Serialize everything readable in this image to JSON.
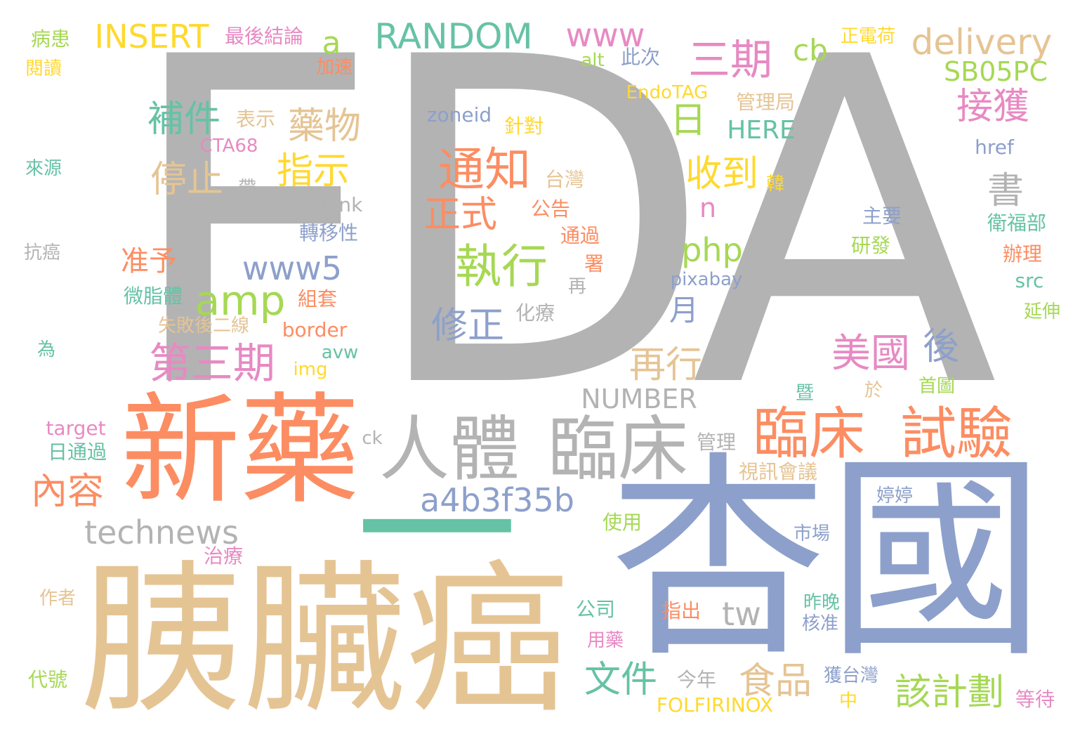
{
  "palette": {
    "gray": "#b3b3b3",
    "salmon": "#fc8d62",
    "periwinkle": "#8da0cb",
    "pink": "#e78ac3",
    "green": "#a6d854",
    "yellow": "#ffd92f",
    "tan": "#e5c494",
    "teal": "#66c2a5"
  },
  "words": [
    {
      "text": "FDA",
      "color": "gray"
    },
    {
      "text": "胰臟癌",
      "color": "tan"
    },
    {
      "text": "杏國",
      "color": "periwinkle"
    },
    {
      "text": "新藥",
      "color": "salmon"
    },
    {
      "text": "一",
      "color": "teal"
    },
    {
      "text": "人體",
      "color": "gray"
    },
    {
      "text": "臨床",
      "color": "gray"
    },
    {
      "text": "臨床",
      "color": "salmon"
    },
    {
      "text": "試驗",
      "color": "salmon"
    },
    {
      "text": "通知",
      "color": "salmon"
    },
    {
      "text": "執行",
      "color": "green"
    },
    {
      "text": "三期",
      "color": "pink"
    },
    {
      "text": "第三期",
      "color": "pink"
    },
    {
      "text": "RANDOM",
      "color": "teal"
    },
    {
      "text": "INSERT",
      "color": "yellow"
    },
    {
      "text": "delivery",
      "color": "tan"
    },
    {
      "text": "www",
      "color": "pink"
    },
    {
      "text": "technews",
      "color": "gray"
    },
    {
      "text": "a4b3f35b",
      "color": "periwinkle"
    },
    {
      "text": "amp",
      "color": "green"
    },
    {
      "text": "www5",
      "color": "periwinkle"
    },
    {
      "text": "NUMBER",
      "color": "gray"
    },
    {
      "text": "SB05PC",
      "color": "green"
    },
    {
      "text": "php",
      "color": "green"
    },
    {
      "text": "cb",
      "color": "green"
    },
    {
      "text": "a",
      "color": "green"
    },
    {
      "text": "HERE",
      "color": "teal"
    },
    {
      "text": "tw",
      "color": "gray"
    },
    {
      "text": "n",
      "color": "pink"
    },
    {
      "text": "補件",
      "color": "teal"
    },
    {
      "text": "藥物",
      "color": "tan"
    },
    {
      "text": "停止",
      "color": "tan"
    },
    {
      "text": "指示",
      "color": "yellow"
    },
    {
      "text": "正式",
      "color": "salmon"
    },
    {
      "text": "修正",
      "color": "periwinkle"
    },
    {
      "text": "收到",
      "color": "yellow"
    },
    {
      "text": "日",
      "color": "green"
    },
    {
      "text": "接獲",
      "color": "pink"
    },
    {
      "text": "書",
      "color": "gray"
    },
    {
      "text": "美國",
      "color": "pink"
    },
    {
      "text": "後",
      "color": "periwinkle"
    },
    {
      "text": "再行",
      "color": "tan"
    },
    {
      "text": "內容",
      "color": "salmon"
    },
    {
      "text": "准予",
      "color": "salmon"
    },
    {
      "text": "文件",
      "color": "teal"
    },
    {
      "text": "食品",
      "color": "tan"
    },
    {
      "text": "該計劃",
      "color": "green"
    },
    {
      "text": "月",
      "color": "periwinkle"
    },
    {
      "text": "最後結論",
      "color": "pink"
    },
    {
      "text": "病患",
      "color": "green"
    },
    {
      "text": "閱讀",
      "color": "yellow"
    },
    {
      "text": "加速",
      "color": "salmon"
    },
    {
      "text": "alt",
      "color": "green"
    },
    {
      "text": "此次",
      "color": "periwinkle"
    },
    {
      "text": "正電荷",
      "color": "yellow"
    },
    {
      "text": "EndoTAG",
      "color": "yellow"
    },
    {
      "text": "管理局",
      "color": "tan"
    },
    {
      "text": "表示",
      "color": "tan"
    },
    {
      "text": "zoneid",
      "color": "periwinkle"
    },
    {
      "text": "針對",
      "color": "yellow"
    },
    {
      "text": "CTA68",
      "color": "pink"
    },
    {
      "text": "href",
      "color": "periwinkle"
    },
    {
      "text": "來源",
      "color": "teal"
    },
    {
      "text": "帶",
      "color": "gray"
    },
    {
      "text": "台灣",
      "color": "tan"
    },
    {
      "text": "韓",
      "color": "yellow"
    },
    {
      "text": "blank",
      "color": "gray"
    },
    {
      "text": "公告",
      "color": "salmon"
    },
    {
      "text": "主要",
      "color": "periwinkle"
    },
    {
      "text": "衛福部",
      "color": "teal"
    },
    {
      "text": "轉移性",
      "color": "periwinkle"
    },
    {
      "text": "通過",
      "color": "salmon"
    },
    {
      "text": "研發",
      "color": "green"
    },
    {
      "text": "抗癌",
      "color": "gray"
    },
    {
      "text": "署",
      "color": "salmon"
    },
    {
      "text": "辦理",
      "color": "salmon"
    },
    {
      "text": "pixabay",
      "color": "periwinkle"
    },
    {
      "text": "再",
      "color": "gray"
    },
    {
      "text": "src",
      "color": "teal"
    },
    {
      "text": "微脂體",
      "color": "teal"
    },
    {
      "text": "組套",
      "color": "salmon"
    },
    {
      "text": "化療",
      "color": "gray"
    },
    {
      "text": "延伸",
      "color": "green"
    },
    {
      "text": "失敗後二線",
      "color": "tan"
    },
    {
      "text": "border",
      "color": "salmon"
    },
    {
      "text": "為",
      "color": "teal"
    },
    {
      "text": "avw",
      "color": "teal"
    },
    {
      "text": "img",
      "color": "yellow"
    },
    {
      "text": "暨",
      "color": "teal"
    },
    {
      "text": "於",
      "color": "tan"
    },
    {
      "text": "首圖",
      "color": "green"
    },
    {
      "text": "target",
      "color": "pink"
    },
    {
      "text": "ck",
      "color": "gray"
    },
    {
      "text": "管理",
      "color": "gray"
    },
    {
      "text": "日通過",
      "color": "teal"
    },
    {
      "text": "視訊會議",
      "color": "tan"
    },
    {
      "text": "婷婷",
      "color": "periwinkle"
    },
    {
      "text": "使用",
      "color": "green"
    },
    {
      "text": "市場",
      "color": "periwinkle"
    },
    {
      "text": "治療",
      "color": "pink"
    },
    {
      "text": "作者",
      "color": "tan"
    },
    {
      "text": "公司",
      "color": "teal"
    },
    {
      "text": "指出",
      "color": "salmon"
    },
    {
      "text": "昨晚",
      "color": "teal"
    },
    {
      "text": "核准",
      "color": "periwinkle"
    },
    {
      "text": "用藥",
      "color": "pink"
    },
    {
      "text": "今年",
      "color": "gray"
    },
    {
      "text": "獲台灣",
      "color": "periwinkle"
    },
    {
      "text": "代號",
      "color": "green"
    },
    {
      "text": "中",
      "color": "yellow"
    },
    {
      "text": "等待",
      "color": "pink"
    },
    {
      "text": "FOLFIRINOX",
      "color": "yellow"
    }
  ]
}
